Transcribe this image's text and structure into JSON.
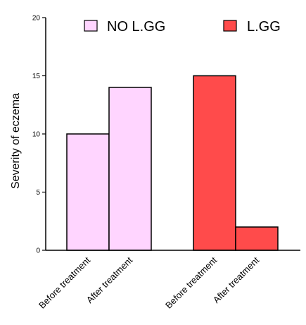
{
  "chart_data": {
    "type": "bar",
    "ylabel": "Severity of eczema",
    "xlabel": "",
    "ylim": [
      0,
      20
    ],
    "yticks": [
      0,
      5,
      10,
      15,
      20
    ],
    "grid": false,
    "legend_position": "top",
    "groups": [
      {
        "name": "NO L.GG",
        "color": "#FFD5FF",
        "categories": [
          "Before treatment",
          "After treatment"
        ],
        "values": [
          10,
          14
        ]
      },
      {
        "name": "L.GG",
        "color": "#FF4B4B",
        "categories": [
          "Before treatment",
          "After treatment"
        ],
        "values": [
          15,
          2
        ]
      }
    ]
  }
}
